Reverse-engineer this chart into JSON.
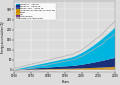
{
  "title": "",
  "xlabel": "Years",
  "ylabel": "Energy accumulation (ZJ)",
  "legend_labels": [
    "Ocean 0 - 700 m",
    "Ocean 0 - 2000 m",
    "Ocean 700 - 2000 m",
    "Continental shelves (0-300 m)",
    "Land",
    "Ice",
    "Atmosphere",
    "Global (uncertainty)"
  ],
  "stack_colors": [
    "#00cfff",
    "#1a3a8a",
    "#4060c0",
    "#c8a000",
    "#b87800",
    "#9966aa",
    "#663388",
    "#aaaaaa"
  ],
  "bg_color": "#dcdcdc",
  "plot_bg": "#dcdcdc",
  "grid_color": "#ffffff",
  "xlim": [
    1960,
    2020
  ],
  "ylim": [
    -10,
    340
  ],
  "yticks": [
    0,
    50,
    100,
    150,
    200,
    250,
    300
  ],
  "xticks": [
    1960,
    1970,
    1980,
    1990,
    2000,
    2010,
    2020
  ]
}
